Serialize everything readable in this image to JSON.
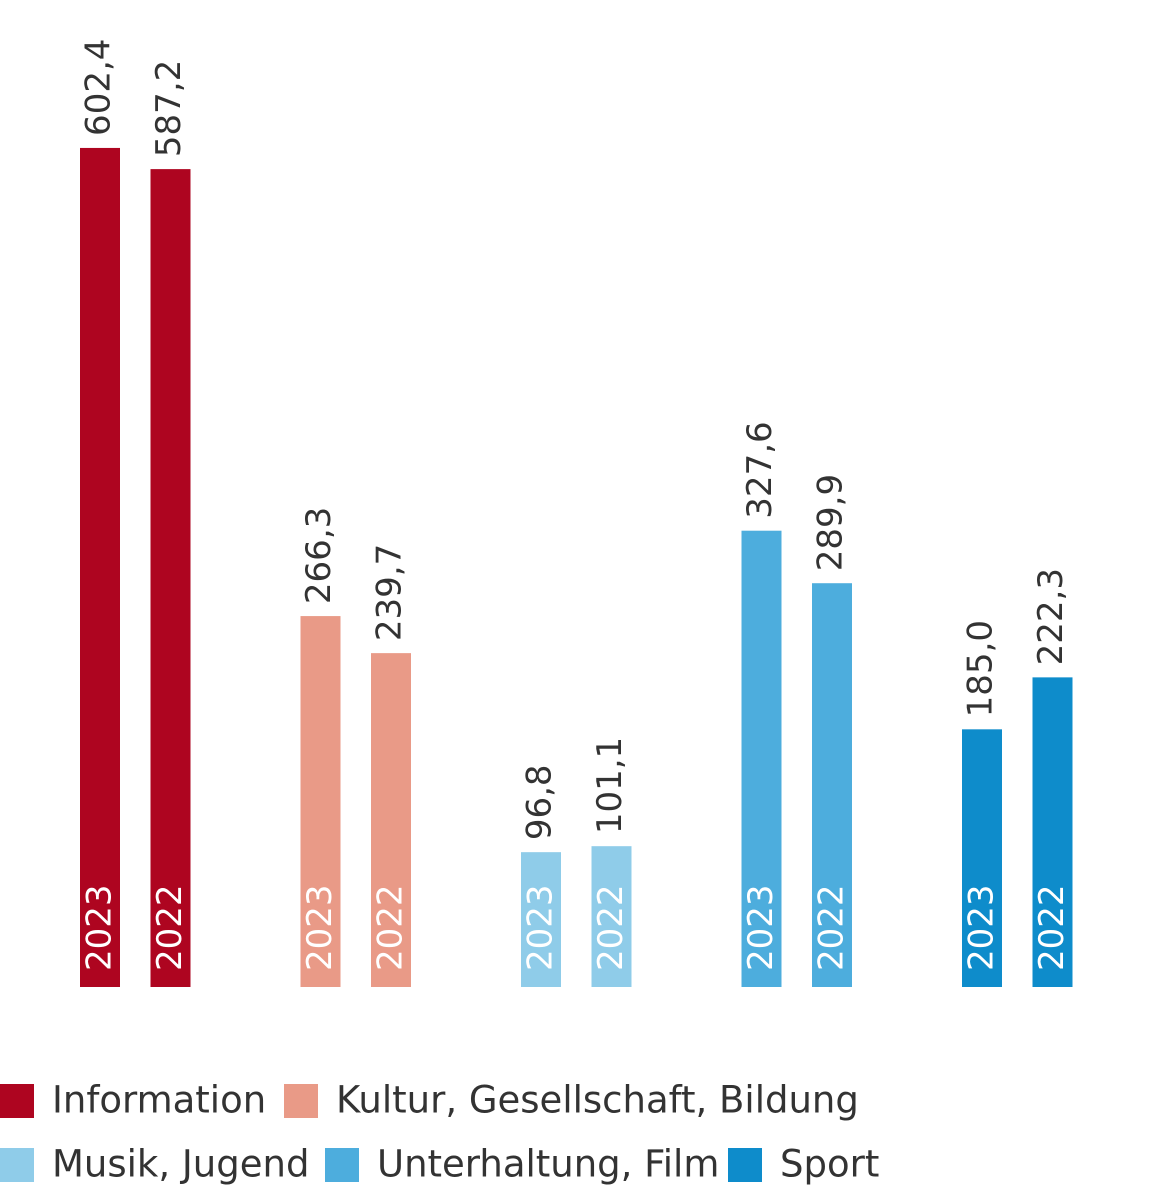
{
  "chart_data": {
    "type": "bar",
    "categories": [
      "2023",
      "2022"
    ],
    "series": [
      {
        "name": "Information",
        "color": "#ae0520",
        "values": [
          602.4,
          587.2
        ],
        "value_labels": [
          "602,4",
          "587,2"
        ]
      },
      {
        "name": "Kultur, Gesellschaft, Bildung",
        "color": "#e99a87",
        "values": [
          266.3,
          239.7
        ],
        "value_labels": [
          "266,3",
          "239,7"
        ]
      },
      {
        "name": "Musik, Jugend",
        "color": "#8fcce9",
        "values": [
          96.8,
          101.1
        ],
        "value_labels": [
          "96,8",
          "101,1"
        ]
      },
      {
        "name": "Unterhaltung, Film",
        "color": "#4daddd",
        "values": [
          327.6,
          289.9
        ],
        "value_labels": [
          "327,6",
          "289,9"
        ]
      },
      {
        "name": "Sport",
        "color": "#0e8ccb",
        "values": [
          185.0,
          222.3
        ],
        "value_labels": [
          "185,0",
          "222,3"
        ]
      }
    ],
    "ylim": [
      0,
      700
    ]
  }
}
